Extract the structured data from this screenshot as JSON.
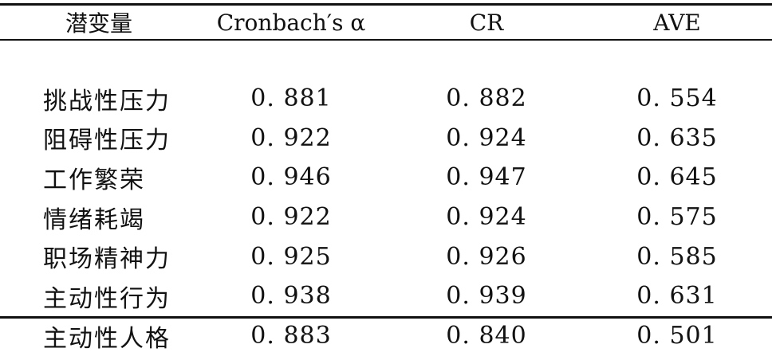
{
  "table": {
    "headers": [
      "潜变量",
      "Cronbach′s α",
      "CR",
      "AVE"
    ],
    "rows": [
      {
        "name": "挑战性压力",
        "alpha": "0. 881",
        "cr": "0. 882",
        "ave": "0. 554"
      },
      {
        "name": "阻碍性压力",
        "alpha": "0. 922",
        "cr": "0. 924",
        "ave": "0. 635"
      },
      {
        "name": "工作繁荣",
        "alpha": "0. 946",
        "cr": "0. 947",
        "ave": "0. 645"
      },
      {
        "name": "情绪耗竭",
        "alpha": "0. 922",
        "cr": "0. 924",
        "ave": "0. 575"
      },
      {
        "name": "职场精神力",
        "alpha": "0. 925",
        "cr": "0. 926",
        "ave": "0. 585"
      },
      {
        "name": "主动性行为",
        "alpha": "0. 938",
        "cr": "0. 939",
        "ave": "0. 631"
      },
      {
        "name": "主动性人格",
        "alpha": "0. 883",
        "cr": "0. 840",
        "ave": "0. 501"
      }
    ]
  }
}
